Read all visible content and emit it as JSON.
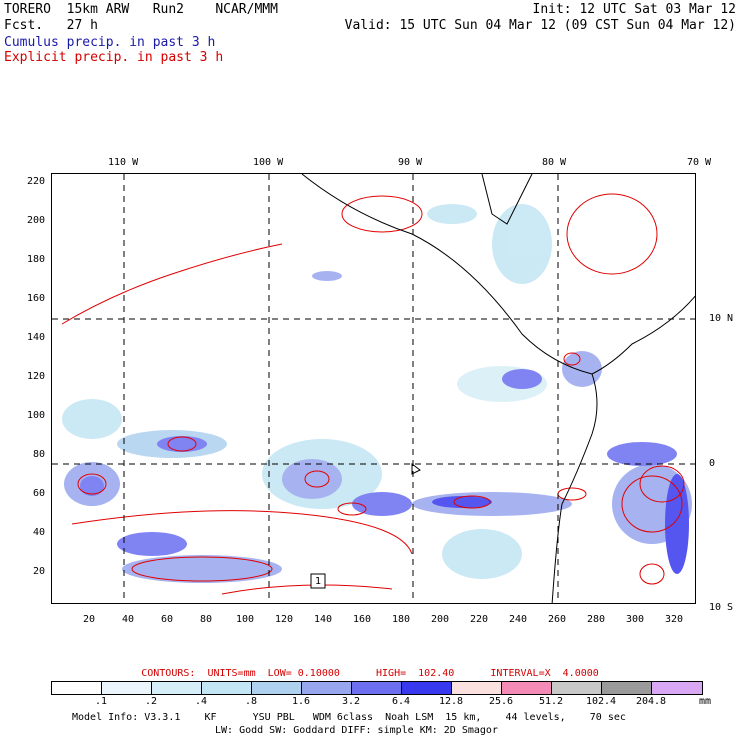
{
  "header": {
    "model_line": "TORERO  15km ARW   Run2    NCAR/MMM",
    "init": "Init: 12 UTC Sat 03 Mar 12",
    "fcst": "Fcst.   27 h",
    "valid": "Valid: 15 UTC Sun 04 Mar 12 (09 CST Sun 04 Mar 12)",
    "legend_cumulus": "Cumulus precip. in past 3 h",
    "legend_explicit": "Explicit precip. in past 3 h"
  },
  "map": {
    "lon_labels": [
      "110 W",
      "100 W",
      "90 W",
      "80 W",
      "70 W"
    ],
    "lat_labels": [
      "10 N",
      "0",
      "10 S"
    ],
    "y_ticks": [
      "220",
      "200",
      "180",
      "160",
      "140",
      "120",
      "100",
      "80",
      "60",
      "40",
      "20"
    ],
    "x_ticks": [
      "20",
      "40",
      "60",
      "80",
      "100",
      "120",
      "140",
      "160",
      "180",
      "200",
      "220",
      "240",
      "260",
      "280",
      "300",
      "320"
    ],
    "box_label": "1"
  },
  "contours": {
    "line": "CONTOURS:  UNITS=mm  LOW= 0.10000      HIGH=  102.40      INTERVAL=X  4.0000"
  },
  "colorbar": {
    "labels": [
      ".1",
      ".2",
      ".4",
      ".8",
      "1.6",
      "3.2",
      "6.4",
      "12.8",
      "25.6",
      "51.2",
      "102.4",
      "204.8"
    ],
    "unit": "mm",
    "colors": [
      "#ffffff",
      "#eaf6fb",
      "#d6eef7",
      "#c2e6f3",
      "#aed1ef",
      "#98a6ee",
      "#6b6ff0",
      "#3838ee",
      "#0000f0",
      "#fbe0e0",
      "#f48ab6",
      "#c8c8c8",
      "#9a9a9a",
      "#d9a8f5"
    ]
  },
  "model_info": {
    "line1": "Model Info: V3.3.1    KF      YSU PBL   WDM 6class  Noah LSM  15 km,    44 levels,    70 sec",
    "line2": "LW: Godd SW: Goddard DIFF: simple KM: 2D Smagor"
  }
}
